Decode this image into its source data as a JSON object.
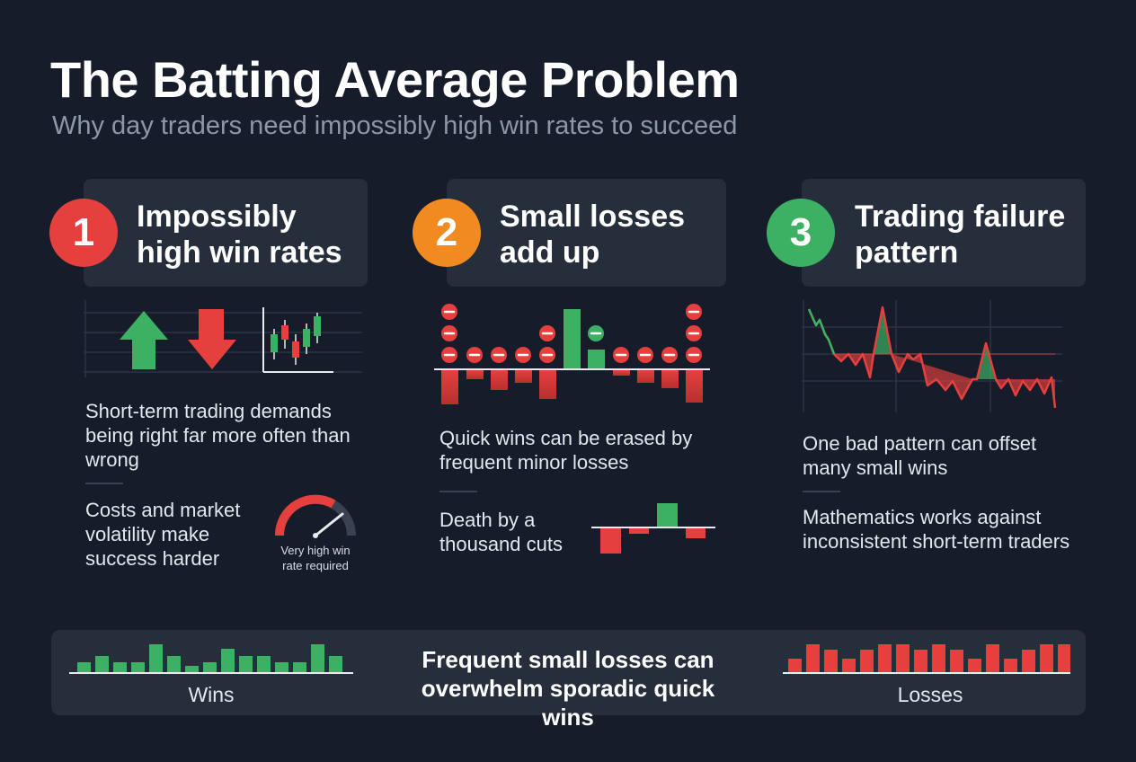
{
  "title": "The Batting Average Problem",
  "subtitle": "Why day traders need impossibly high win rates to succeed",
  "columns": [
    {
      "number": "1",
      "heading_line1": "Impossibly",
      "heading_line2": "high win rates",
      "text1": "Short-term trading demands being right far more often than wrong",
      "text2": "Costs and market volatility make success harder",
      "gauge_label": "Very high win rate required",
      "color": "#e5403e"
    },
    {
      "number": "2",
      "heading_line1": "Small losses",
      "heading_line2": "add up",
      "text1": "Quick wins can be erased by frequent minor losses",
      "text2": "Death by a thousand cuts",
      "color": "#f28a22"
    },
    {
      "number": "3",
      "heading_line1": "Trading failure",
      "heading_line2": "pattern",
      "text1": "One bad pattern can offset many small wins",
      "text2": "Mathematics works against inconsistent short-term traders",
      "color": "#3cb063"
    }
  ],
  "footer": {
    "message": "Frequent small losses can overwhelm sporadic quick wins",
    "wins_label": "Wins",
    "losses_label": "Losses"
  },
  "colors": {
    "green": "#3cb063",
    "red": "#e5403e",
    "orange": "#f28a22",
    "panel": "#262d3b",
    "background": "#161c29"
  }
}
